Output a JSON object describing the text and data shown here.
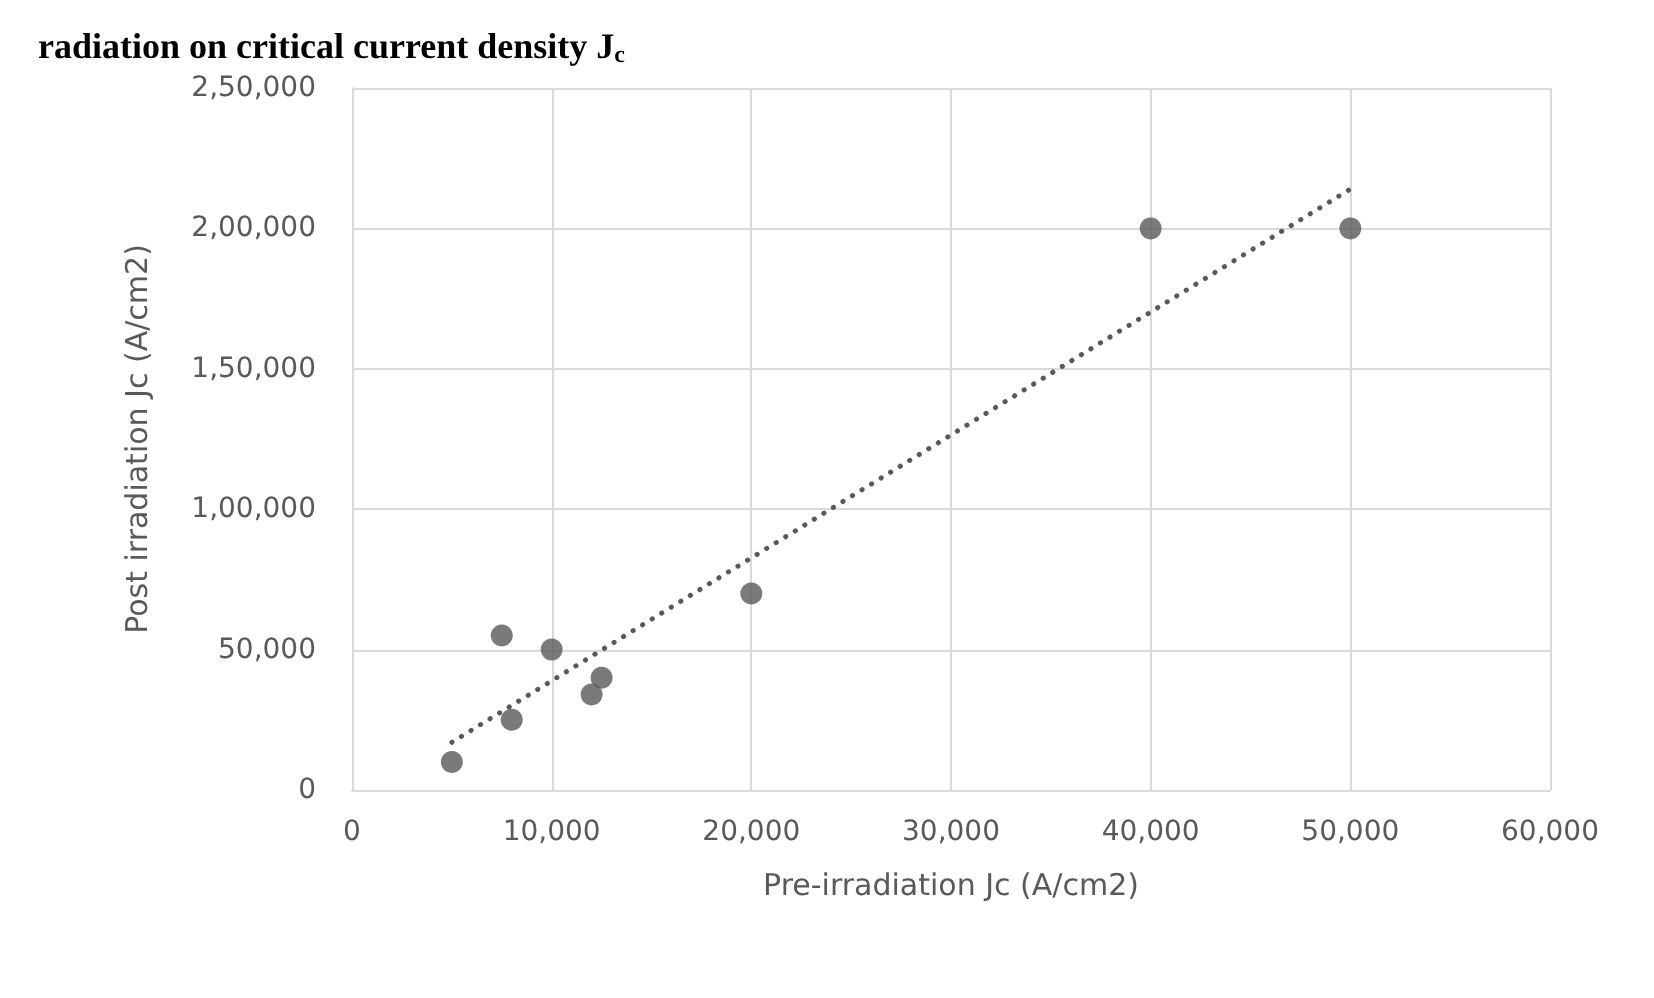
{
  "chart_data": {
    "type": "scatter",
    "title": "radiation on critical current density J$_{c}$",
    "xlabel": "Pre-irradiation Jc (A/cm2)",
    "ylabel": "Post irradiation Jc (A/cm2)",
    "series": [
      {
        "color": "#595959",
        "marker": "circle",
        "x": [
          5000,
          7500,
          8000,
          10000,
          12000,
          12500,
          20000,
          40000,
          50000
        ],
        "values": [
          10000,
          55000,
          25000,
          50000,
          34000,
          40000,
          70000,
          200000,
          200000
        ]
      },
      {
        "type": "line",
        "color": "#595959",
        "marker": "none",
        "line_style": "dotted",
        "x": [
          5000,
          50000
        ],
        "values": [
          17000,
          214000
        ]
      }
    ],
    "xlim": [
      0,
      60000
    ],
    "xticks": [
      0,
      {
        "value": 10000,
        "label": "10,000"
      },
      {
        "value": 20000,
        "label": "20,000"
      },
      {
        "value": 30000,
        "label": "30,000"
      },
      {
        "value": 40000,
        "label": "40,000"
      },
      {
        "value": 50000,
        "label": "50,000"
      },
      {
        "value": 60000,
        "label": "60,000"
      }
    ],
    "ylim": [
      0,
      250000
    ],
    "yticks": [
      0,
      {
        "value": 50000,
        "label": "50,000"
      },
      {
        "value": 100000,
        "label": "1,00,000"
      },
      {
        "value": 150000,
        "label": "1,50,000"
      },
      {
        "value": 200000,
        "label": "2,00,000"
      },
      {
        "value": 250000,
        "label": "2,50,000"
      }
    ],
    "grid": true
  }
}
